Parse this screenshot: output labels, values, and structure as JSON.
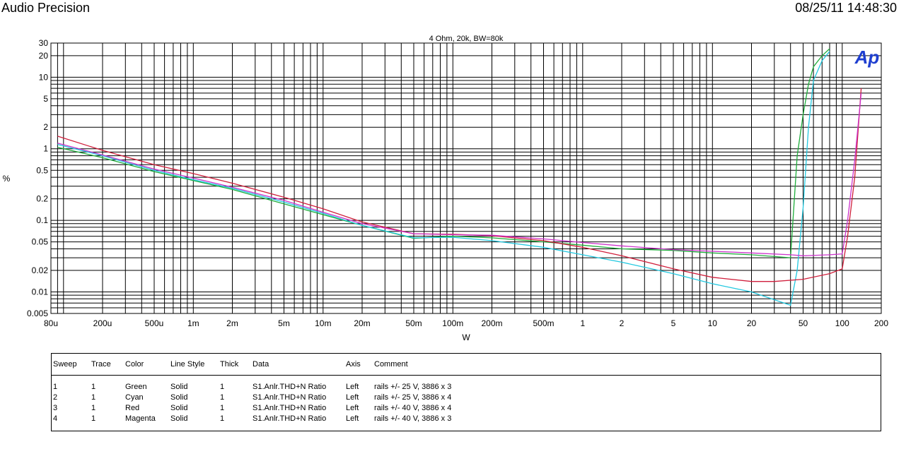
{
  "header": {
    "brand": "Audio Precision",
    "timestamp": "08/25/11 14:48:30"
  },
  "chart_data": {
    "type": "line",
    "title": "4 Ohm, 20k, BW=80k",
    "xlabel": "W",
    "ylabel": "%",
    "xscale": "log",
    "yscale": "log",
    "xlim": [
      8e-05,
      200
    ],
    "ylim": [
      0.005,
      30
    ],
    "grid": true,
    "x_ticks": [
      {
        "v": 8e-05,
        "label": "80u"
      },
      {
        "v": 0.0002,
        "label": "200u"
      },
      {
        "v": 0.0005,
        "label": "500u"
      },
      {
        "v": 0.001,
        "label": "1m"
      },
      {
        "v": 0.002,
        "label": "2m"
      },
      {
        "v": 0.005,
        "label": "5m"
      },
      {
        "v": 0.01,
        "label": "10m"
      },
      {
        "v": 0.02,
        "label": "20m"
      },
      {
        "v": 0.05,
        "label": "50m"
      },
      {
        "v": 0.1,
        "label": "100m"
      },
      {
        "v": 0.2,
        "label": "200m"
      },
      {
        "v": 0.5,
        "label": "500m"
      },
      {
        "v": 1,
        "label": "1"
      },
      {
        "v": 2,
        "label": "2"
      },
      {
        "v": 5,
        "label": "5"
      },
      {
        "v": 10,
        "label": "10"
      },
      {
        "v": 20,
        "label": "20"
      },
      {
        "v": 50,
        "label": "50"
      },
      {
        "v": 100,
        "label": "100"
      },
      {
        "v": 200,
        "label": "200"
      }
    ],
    "y_ticks": [
      {
        "v": 30,
        "label": "30"
      },
      {
        "v": 20,
        "label": "20"
      },
      {
        "v": 10,
        "label": "10"
      },
      {
        "v": 5,
        "label": "5"
      },
      {
        "v": 2,
        "label": "2"
      },
      {
        "v": 1,
        "label": "1"
      },
      {
        "v": 0.5,
        "label": "0.5"
      },
      {
        "v": 0.2,
        "label": "0.2"
      },
      {
        "v": 0.1,
        "label": "0.1"
      },
      {
        "v": 0.05,
        "label": "0.05"
      },
      {
        "v": 0.02,
        "label": "0.02"
      },
      {
        "v": 0.01,
        "label": "0.01"
      },
      {
        "v": 0.005,
        "label": "0.005"
      }
    ],
    "series": [
      {
        "name": "Green",
        "color": "#1fae3c",
        "x": [
          9e-05,
          0.0002,
          0.0005,
          0.001,
          0.002,
          0.005,
          0.01,
          0.02,
          0.05,
          0.1,
          0.2,
          0.5,
          1,
          2,
          5,
          10,
          20,
          40,
          45,
          50,
          55,
          60,
          70,
          80
        ],
        "y": [
          1.05,
          0.75,
          0.48,
          0.36,
          0.27,
          0.17,
          0.12,
          0.085,
          0.056,
          0.06,
          0.057,
          0.05,
          0.045,
          0.04,
          0.038,
          0.035,
          0.033,
          0.03,
          0.8,
          3,
          8,
          14,
          20,
          25
        ]
      },
      {
        "name": "Cyan",
        "color": "#22c8e0",
        "x": [
          9e-05,
          0.0002,
          0.0005,
          0.001,
          0.002,
          0.005,
          0.01,
          0.02,
          0.05,
          0.1,
          0.2,
          0.5,
          1,
          2,
          5,
          10,
          20,
          40,
          45,
          50,
          55,
          60,
          70,
          80
        ],
        "y": [
          1.15,
          0.8,
          0.5,
          0.37,
          0.28,
          0.18,
          0.125,
          0.085,
          0.057,
          0.058,
          0.052,
          0.042,
          0.033,
          0.026,
          0.018,
          0.013,
          0.01,
          0.0065,
          0.02,
          0.15,
          2,
          9,
          17,
          23
        ]
      },
      {
        "name": "Red",
        "color": "#d01f3c",
        "x": [
          9e-05,
          0.0002,
          0.0005,
          0.001,
          0.002,
          0.005,
          0.01,
          0.02,
          0.05,
          0.1,
          0.2,
          0.5,
          1,
          2,
          5,
          10,
          20,
          30,
          50,
          80,
          100,
          110,
          125,
          140
        ],
        "y": [
          1.5,
          0.95,
          0.6,
          0.45,
          0.33,
          0.21,
          0.145,
          0.095,
          0.065,
          0.064,
          0.061,
          0.052,
          0.042,
          0.032,
          0.021,
          0.016,
          0.014,
          0.014,
          0.015,
          0.018,
          0.021,
          0.06,
          0.4,
          7
        ]
      },
      {
        "name": "Magenta",
        "color": "#cc33cc",
        "x": [
          9e-05,
          0.0002,
          0.0005,
          0.001,
          0.002,
          0.005,
          0.01,
          0.02,
          0.05,
          0.1,
          0.2,
          0.5,
          1,
          2,
          5,
          10,
          20,
          40,
          50,
          80,
          100,
          110,
          125,
          140
        ],
        "y": [
          1.2,
          0.82,
          0.52,
          0.39,
          0.29,
          0.19,
          0.13,
          0.09,
          0.065,
          0.063,
          0.062,
          0.055,
          0.049,
          0.044,
          0.039,
          0.037,
          0.035,
          0.033,
          0.032,
          0.033,
          0.034,
          0.1,
          0.7,
          6
        ]
      }
    ]
  },
  "legend": {
    "headers": [
      "Sweep",
      "Trace",
      "Color",
      "Line Style",
      "Thick",
      "Data",
      "Axis",
      "Comment"
    ],
    "rows": [
      [
        "1",
        "1",
        "Green",
        "Solid",
        "1",
        "S1.Anlr.THD+N Ratio",
        "Left",
        "rails +/- 25 V, 3886 x 3"
      ],
      [
        "2",
        "1",
        "Cyan",
        "Solid",
        "1",
        "S1.Anlr.THD+N Ratio",
        "Left",
        "rails +/- 25 V, 3886 x 4"
      ],
      [
        "3",
        "1",
        "Red",
        "Solid",
        "1",
        "S1.Anlr.THD+N Ratio",
        "Left",
        "rails +/- 40 V, 3886 x 4"
      ],
      [
        "4",
        "1",
        "Magenta",
        "Solid",
        "1",
        "S1.Anlr.THD+N Ratio",
        "Left",
        "rails +/- 40 V, 3886 x 3"
      ]
    ]
  },
  "logo": {
    "text": "Ap",
    "color": "#1f3fd0"
  }
}
